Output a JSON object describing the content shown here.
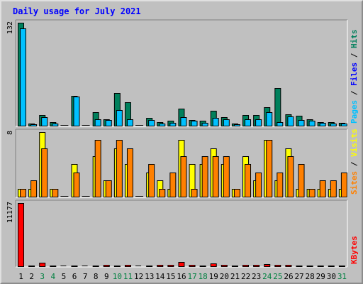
{
  "chart_data": {
    "type": "bar",
    "title": "Daily usage for July 2021",
    "categories": [
      "1",
      "2",
      "3",
      "4",
      "5",
      "6",
      "7",
      "8",
      "9",
      "10",
      "11",
      "12",
      "13",
      "14",
      "15",
      "16",
      "17",
      "18",
      "19",
      "20",
      "21",
      "22",
      "23",
      "24",
      "25",
      "26",
      "27",
      "28",
      "29",
      "30",
      "31"
    ],
    "weekend_days": [
      "3",
      "4",
      "10",
      "11",
      "17",
      "18",
      "24",
      "25",
      "31"
    ],
    "colors": {
      "day_weekday": "#000000",
      "day_weekend": "#008040",
      "hits": "#00805c",
      "files": "#0000ff",
      "pages": "#00c0ff",
      "visits": "#ffff00",
      "sites": "#ff8000",
      "kbytes": "#ff0000"
    },
    "panels": [
      {
        "id": "hits",
        "ymax_label": "132",
        "ymax": 132,
        "legend": [
          {
            "text": "Hits",
            "color": "#00805c"
          },
          {
            "text": "Files",
            "color": "#0000ff"
          },
          {
            "text": "Pages",
            "color": "#00c0ff"
          }
        ],
        "series": [
          {
            "name": "Hits",
            "color": "#00805c",
            "values": [
              132,
              3,
              14,
              5,
              0,
              38,
              0,
              17,
              8,
              42,
              30,
              0,
              10,
              5,
              6,
              22,
              7,
              6,
              19,
              11,
              3,
              14,
              14,
              24,
              48,
              15,
              13,
              8,
              5,
              5,
              4
            ]
          },
          {
            "name": "Pages",
            "color": "#00c0ff",
            "values": [
              125,
              2,
              11,
              3,
              0,
              37,
              0,
              8,
              7,
              20,
              8,
              0,
              7,
              3,
              4,
              11,
              6,
              4,
              10,
              8,
              2,
              8,
              8,
              17,
              5,
              12,
              7,
              6,
              4,
              3,
              3
            ]
          }
        ]
      },
      {
        "id": "visits",
        "ymax_label": "8",
        "ymax": 8,
        "legend": [
          {
            "text": "Visits",
            "color": "#ffff00"
          },
          {
            "text": "Sites",
            "color": "#ff8000"
          }
        ],
        "series": [
          {
            "name": "Visits",
            "color": "#ffff00",
            "values": [
              1,
              1,
              8,
              1,
              0,
              4,
              0,
              5,
              2,
              6,
              4,
              0,
              3,
              2,
              1,
              7,
              4,
              4,
              6,
              4,
              1,
              5,
              2,
              7,
              2,
              6,
              1,
              1,
              1,
              1,
              1
            ]
          },
          {
            "name": "Sites",
            "color": "#ff8000",
            "values": [
              1,
              2,
              6,
              1,
              0,
              3,
              0,
              7,
              2,
              7,
              6,
              0,
              4,
              1,
              3,
              5,
              1,
              5,
              5,
              5,
              1,
              4,
              3,
              7,
              3,
              5,
              4,
              1,
              2,
              2,
              3
            ]
          }
        ]
      },
      {
        "id": "kbytes",
        "ymax_label": "11177",
        "ymax": 11177,
        "legend": [
          {
            "text": "KBytes",
            "color": "#ff0000"
          }
        ],
        "series": [
          {
            "name": "KBytes",
            "color": "#ff0000",
            "values": [
              11177,
              40,
              600,
              60,
              0,
              80,
              0,
              120,
              200,
              180,
              250,
              0,
              150,
              250,
              200,
              800,
              250,
              100,
              450,
              300,
              100,
              300,
              250,
              350,
              300,
              200,
              150,
              100,
              100,
              80,
              50
            ]
          }
        ]
      }
    ]
  }
}
